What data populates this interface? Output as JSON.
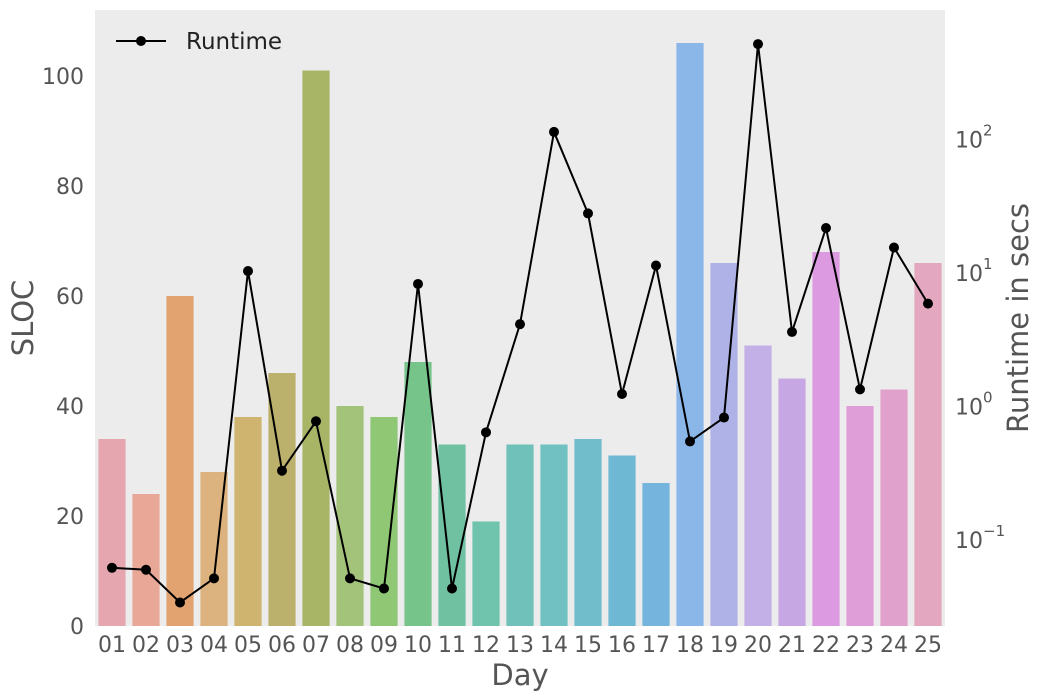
{
  "chart_data": {
    "type": "bar",
    "categories": [
      "01",
      "02",
      "03",
      "04",
      "05",
      "06",
      "07",
      "08",
      "09",
      "10",
      "11",
      "12",
      "13",
      "14",
      "15",
      "16",
      "17",
      "18",
      "19",
      "20",
      "21",
      "22",
      "23",
      "24",
      "25"
    ],
    "xlabel": "Day",
    "series": [
      {
        "type": "bar",
        "axis": "left",
        "values": [
          34,
          24,
          60,
          28,
          38,
          46,
          101,
          40,
          38,
          48,
          33,
          19,
          33,
          33,
          34,
          31,
          26,
          106,
          66,
          51,
          45,
          68,
          40,
          43,
          66
        ],
        "colors": [
          "#e6a6b0",
          "#e8a797",
          "#e3a371",
          "#dcb27e",
          "#cfb46f",
          "#bcb16c",
          "#a8b466",
          "#a3c37a",
          "#8fc774",
          "#77c48b",
          "#70c0a2",
          "#70c3ad",
          "#70c1ba",
          "#72c1c2",
          "#72bdcb",
          "#6fb8d3",
          "#75b4dc",
          "#8ab6e8",
          "#aeb2e6",
          "#c2b0e6",
          "#c7a6e4",
          "#dc9ae0",
          "#df9ed8",
          "#e0a2cc",
          "#e3a7bf"
        ]
      },
      {
        "type": "line",
        "axis": "right",
        "name": "Runtime",
        "color": "#000000",
        "values": [
          0.06,
          0.058,
          0.033,
          0.05,
          10,
          0.32,
          0.75,
          0.05,
          0.042,
          8,
          0.042,
          0.62,
          4,
          110,
          27,
          1.2,
          11,
          0.53,
          0.8,
          500,
          3.5,
          21,
          1.3,
          15,
          5.7
        ]
      }
    ],
    "y_left": {
      "label": "SLOC",
      "ylim": [
        0,
        112
      ],
      "ticks": [
        0,
        20,
        40,
        60,
        80,
        100
      ]
    },
    "y_right": {
      "label": "Runtime in secs",
      "scale": "log",
      "ylim": [
        0.022,
        900
      ],
      "ticks": [
        {
          "value": 0.1,
          "base": "10",
          "exp": "−1"
        },
        {
          "value": 1,
          "base": "10",
          "exp": "0"
        },
        {
          "value": 10,
          "base": "10",
          "exp": "1"
        },
        {
          "value": 100,
          "base": "10",
          "exp": "2"
        }
      ]
    },
    "grid": false,
    "legend": {
      "position": "top-left",
      "entries": [
        "Runtime"
      ]
    },
    "background": "#ececec"
  }
}
